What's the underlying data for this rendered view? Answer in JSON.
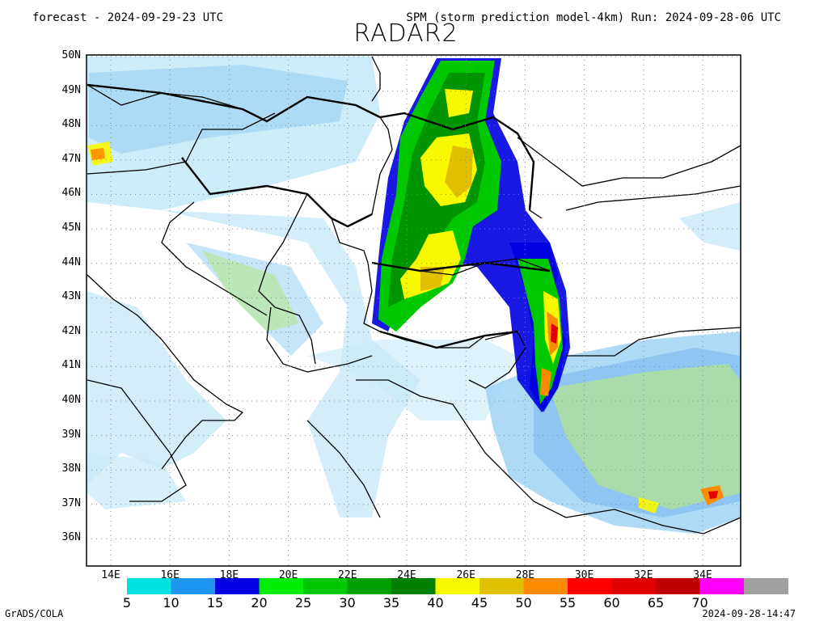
{
  "header": {
    "forecast": "forecast - 2024-09-29-23 UTC",
    "model_run": "SPM (storm prediction model-4km) Run: 2024-09-28-06 UTC",
    "title": "RADAR2"
  },
  "axes": {
    "lat_labels": [
      "50N",
      "49N",
      "48N",
      "47N",
      "46N",
      "45N",
      "44N",
      "43N",
      "42N",
      "41N",
      "40N",
      "39N",
      "38N",
      "37N",
      "36N"
    ],
    "lon_labels": [
      "14E",
      "16E",
      "18E",
      "20E",
      "22E",
      "24E",
      "26E",
      "28E",
      "30E",
      "32E",
      "34E"
    ]
  },
  "colorbar": {
    "labels": [
      "5",
      "10",
      "15",
      "20",
      "25",
      "30",
      "35",
      "40",
      "45",
      "50",
      "55",
      "60",
      "65",
      "70"
    ],
    "colors": [
      "#00e0e0",
      "#1e96ef",
      "#0000e0",
      "#00ec00",
      "#00c800",
      "#00a000",
      "#008000",
      "#f8f800",
      "#e0c000",
      "#ff8c00",
      "#ff0000",
      "#e00000",
      "#c00000",
      "#ff00ff",
      "#a0a0a0"
    ]
  },
  "map_colors": {
    "background": "#ffffff",
    "light_blue": "#c8eaf8",
    "sky": "#a0d4f4",
    "mid_blue": "#78b4ec",
    "pale_green": "#b4e68c",
    "green": "#00c800",
    "dark_green": "#008c00",
    "deep_blue": "#0000e0",
    "yellow": "#f8f800",
    "gold": "#e0c000",
    "orange": "#ff8c00",
    "red": "#e00000"
  },
  "footer": {
    "credit": "GrADS/COLA",
    "timestamp": "2024-09-28-14:47"
  }
}
